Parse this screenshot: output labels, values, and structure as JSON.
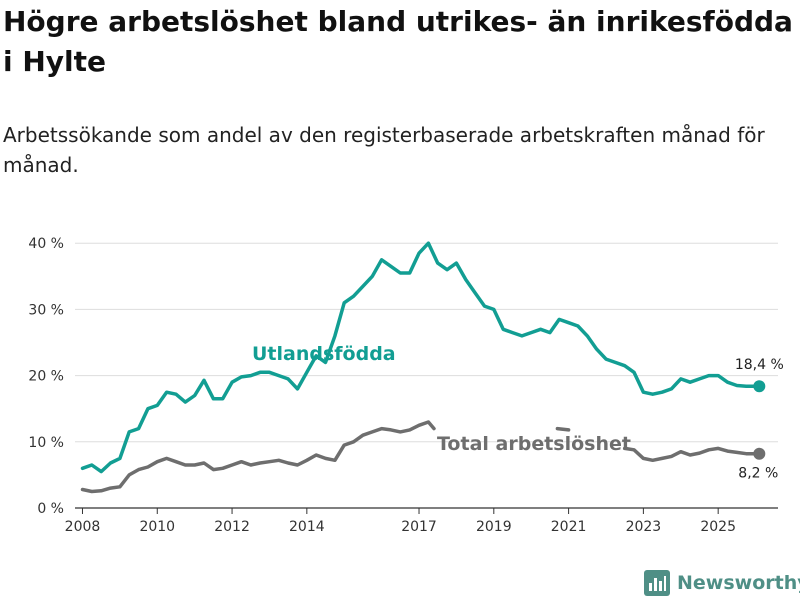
{
  "title": "Högre arbetslöshet bland utrikes- än inrikesfödda i Hylte",
  "subtitle": "Arbetssökande som andel av den registerbaserade arbetskraften månad för månad.",
  "brand": "Newsworthy",
  "chart_data": {
    "type": "line",
    "x_ticks": [
      2008,
      2010,
      2012,
      2014,
      2017,
      2019,
      2021,
      2023,
      2025
    ],
    "x_tick_labels": [
      "2008",
      "2010",
      "2012",
      "2014",
      "2017",
      "2019",
      "2021",
      "2023",
      "2025"
    ],
    "xlim": [
      2007.8,
      2026.6
    ],
    "ylim": [
      0,
      42
    ],
    "y_ticks": [
      0,
      10,
      20,
      30,
      40
    ],
    "y_tick_labels": [
      "0 %",
      "10 %",
      "20 %",
      "30 %",
      "40 %"
    ],
    "grid": true,
    "series": [
      {
        "name": "Utlandsfödda",
        "label": "Utlandsfödda",
        "color": "#129e93",
        "end_label": "18,4 %",
        "points": [
          [
            2008.0,
            6.0
          ],
          [
            2008.25,
            6.5
          ],
          [
            2008.5,
            5.5
          ],
          [
            2008.75,
            6.8
          ],
          [
            2009.0,
            7.5
          ],
          [
            2009.25,
            11.5
          ],
          [
            2009.5,
            12.0
          ],
          [
            2009.75,
            15.0
          ],
          [
            2010.0,
            15.5
          ],
          [
            2010.25,
            17.5
          ],
          [
            2010.5,
            17.2
          ],
          [
            2010.75,
            16.0
          ],
          [
            2011.0,
            17.0
          ],
          [
            2011.25,
            19.3
          ],
          [
            2011.5,
            16.5
          ],
          [
            2011.75,
            16.5
          ],
          [
            2012.0,
            19.0
          ],
          [
            2012.25,
            19.8
          ],
          [
            2012.5,
            20.0
          ],
          [
            2012.75,
            20.5
          ],
          [
            2013.0,
            20.5
          ],
          [
            2013.25,
            20.0
          ],
          [
            2013.5,
            19.5
          ],
          [
            2013.75,
            18.0
          ],
          [
            2014.0,
            20.5
          ],
          [
            2014.25,
            23.0
          ],
          [
            2014.5,
            22.0
          ],
          [
            2014.75,
            26.0
          ],
          [
            2015.0,
            31.0
          ],
          [
            2015.25,
            32.0
          ],
          [
            2015.5,
            33.5
          ],
          [
            2015.75,
            35.0
          ],
          [
            2016.0,
            37.5
          ],
          [
            2016.25,
            36.5
          ],
          [
            2016.5,
            35.5
          ],
          [
            2016.75,
            35.5
          ],
          [
            2017.0,
            38.5
          ],
          [
            2017.25,
            40.0
          ],
          [
            2017.5,
            37.0
          ],
          [
            2017.75,
            36.0
          ],
          [
            2018.0,
            37.0
          ],
          [
            2018.25,
            34.5
          ],
          [
            2018.5,
            32.5
          ],
          [
            2018.75,
            30.5
          ],
          [
            2019.0,
            30.0
          ],
          [
            2019.25,
            27.0
          ],
          [
            2019.5,
            26.5
          ],
          [
            2019.75,
            26.0
          ],
          [
            2020.0,
            26.5
          ],
          [
            2020.25,
            27.0
          ],
          [
            2020.5,
            26.5
          ],
          [
            2020.75,
            28.5
          ],
          [
            2021.0,
            28.0
          ],
          [
            2021.25,
            27.5
          ],
          [
            2021.5,
            26.0
          ],
          [
            2021.75,
            24.0
          ],
          [
            2022.0,
            22.5
          ],
          [
            2022.25,
            22.0
          ],
          [
            2022.5,
            21.5
          ],
          [
            2022.75,
            20.5
          ],
          [
            2023.0,
            17.5
          ],
          [
            2023.25,
            17.2
          ],
          [
            2023.5,
            17.5
          ],
          [
            2023.75,
            18.0
          ],
          [
            2024.0,
            19.5
          ],
          [
            2024.25,
            19.0
          ],
          [
            2024.5,
            19.5
          ],
          [
            2024.75,
            20.0
          ],
          [
            2025.0,
            20.0
          ],
          [
            2025.25,
            19.0
          ],
          [
            2025.5,
            18.5
          ],
          [
            2025.75,
            18.4
          ],
          [
            2026.1,
            18.4
          ]
        ]
      },
      {
        "name": "Total arbetslöshet",
        "label": "Total arbetslöshet",
        "color": "#6e6e6e",
        "end_label": "8,2 %",
        "points": [
          [
            2008.0,
            2.8
          ],
          [
            2008.25,
            2.5
          ],
          [
            2008.5,
            2.6
          ],
          [
            2008.75,
            3.0
          ],
          [
            2009.0,
            3.2
          ],
          [
            2009.25,
            5.0
          ],
          [
            2009.5,
            5.8
          ],
          [
            2009.75,
            6.2
          ],
          [
            2010.0,
            7.0
          ],
          [
            2010.25,
            7.5
          ],
          [
            2010.5,
            7.0
          ],
          [
            2010.75,
            6.5
          ],
          [
            2011.0,
            6.5
          ],
          [
            2011.25,
            6.8
          ],
          [
            2011.5,
            5.8
          ],
          [
            2011.75,
            6.0
          ],
          [
            2012.0,
            6.5
          ],
          [
            2012.25,
            7.0
          ],
          [
            2012.5,
            6.5
          ],
          [
            2012.75,
            6.8
          ],
          [
            2013.0,
            7.0
          ],
          [
            2013.25,
            7.2
          ],
          [
            2013.5,
            6.8
          ],
          [
            2013.75,
            6.5
          ],
          [
            2014.0,
            7.2
          ],
          [
            2014.25,
            8.0
          ],
          [
            2014.5,
            7.5
          ],
          [
            2014.75,
            7.2
          ],
          [
            2015.0,
            9.5
          ],
          [
            2015.25,
            10.0
          ],
          [
            2015.5,
            11.0
          ],
          [
            2015.75,
            11.5
          ],
          [
            2016.0,
            12.0
          ],
          [
            2016.25,
            11.8
          ],
          [
            2016.5,
            11.5
          ],
          [
            2016.75,
            11.8
          ],
          [
            2017.0,
            12.5
          ],
          [
            2017.25,
            13.0
          ],
          [
            2017.4,
            12.0
          ],
          [
            2020.7,
            12.0
          ],
          [
            2021.0,
            11.8
          ],
          [
            2022.5,
            9.0
          ],
          [
            2022.75,
            8.8
          ],
          [
            2023.0,
            7.5
          ],
          [
            2023.25,
            7.2
          ],
          [
            2023.5,
            7.5
          ],
          [
            2023.75,
            7.8
          ],
          [
            2024.0,
            8.5
          ],
          [
            2024.25,
            8.0
          ],
          [
            2024.5,
            8.3
          ],
          [
            2024.75,
            8.8
          ],
          [
            2025.0,
            9.0
          ],
          [
            2025.25,
            8.6
          ],
          [
            2025.5,
            8.4
          ],
          [
            2025.75,
            8.2
          ],
          [
            2026.1,
            8.2
          ]
        ]
      }
    ]
  }
}
